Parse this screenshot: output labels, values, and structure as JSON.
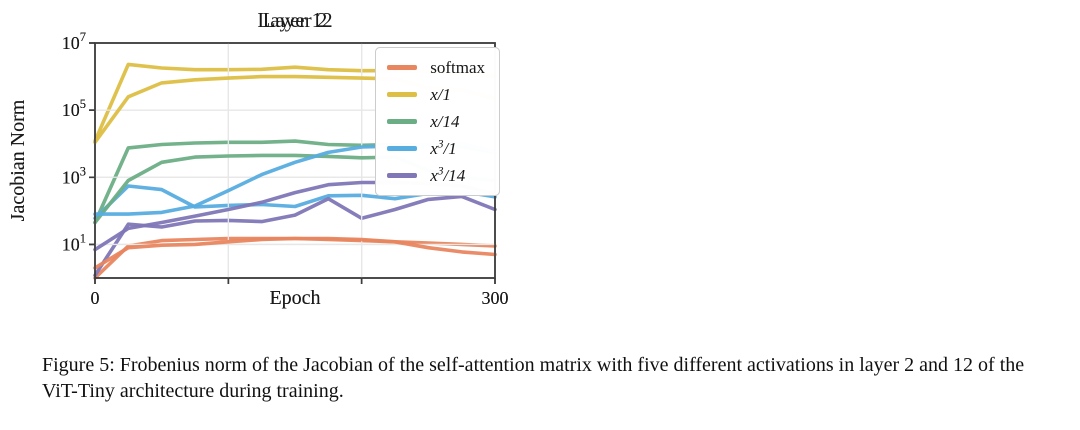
{
  "figure": {
    "caption": "Figure 5: Frobenius norm of the Jacobian of the self-attention matrix with five different activations in layer 2 and 12 of the ViT-Tiny architecture during training."
  },
  "style": {
    "grid_color": "#E7E7E7",
    "spine_color": "#3D3D3D",
    "text_color": "#1A1A1A",
    "legend_border": "#CCCCCC",
    "series_colors": {
      "softmax": "#E8865F",
      "x/1": "#DDBF45",
      "x/14": "#6BAE85",
      "x^3/1": "#57ADE0",
      "x^3/14": "#8077B7"
    }
  },
  "chart_data": [
    {
      "type": "line",
      "title": "Layer 2",
      "xlabel": "Epoch",
      "ylabel": "Jacobian Norm",
      "xlim": [
        0,
        300
      ],
      "ylim_exponents": [
        0,
        7
      ],
      "yscale": "log",
      "grid": true,
      "legend_position": "upper right",
      "xticks": [
        0,
        100,
        200,
        300
      ],
      "xtick_labels": [
        "0",
        "",
        "",
        "300"
      ],
      "ytick_exponents": [
        1,
        3,
        5,
        7
      ],
      "x": [
        0,
        25,
        50,
        75,
        100,
        125,
        150,
        175,
        200,
        225,
        250,
        275,
        300
      ],
      "series": [
        {
          "name": "softmax",
          "color": "#E8865F",
          "values": [
            1.0,
            9,
            13,
            14,
            15,
            15,
            15,
            14,
            13,
            12,
            11,
            10,
            9
          ]
        },
        {
          "name": "x/1",
          "color": "#DDBF45",
          "values": [
            12000,
            2300000,
            1800000,
            1600000,
            1600000,
            1650000,
            1900000,
            1600000,
            1500000,
            1500000,
            1400000,
            1250000,
            1000000
          ]
        },
        {
          "name": "x/14",
          "color": "#6BAE85",
          "values": [
            45,
            7500,
            9500,
            10500,
            11000,
            11000,
            12000,
            9500,
            9000,
            9500,
            9000,
            8000,
            5500
          ]
        },
        {
          "name": "x^3/1",
          "color": "#57ADE0",
          "values": [
            60,
            550,
            430,
            130,
            145,
            155,
            135,
            280,
            290,
            230,
            330,
            380,
            260
          ]
        },
        {
          "name": "x^3/14",
          "color": "#8077B7",
          "values": [
            1.2,
            40,
            33,
            50,
            52,
            48,
            75,
            230,
            60,
            110,
            220,
            270,
            110
          ]
        }
      ]
    },
    {
      "type": "line",
      "title": "Layer 12",
      "xlabel": "Epoch",
      "ylabel": "Jacobian Norm",
      "xlim": [
        0,
        300
      ],
      "ylim_exponents": [
        0,
        7
      ],
      "yscale": "log",
      "grid": true,
      "legend_position": "upper right",
      "xticks": [
        0,
        100,
        200,
        300
      ],
      "xtick_labels": [
        "0",
        "",
        "",
        "300"
      ],
      "ytick_exponents": [
        1,
        3,
        5,
        7
      ],
      "x": [
        0,
        25,
        50,
        75,
        100,
        125,
        150,
        175,
        200,
        225,
        250,
        275,
        300
      ],
      "series": [
        {
          "name": "softmax",
          "color": "#E8865F",
          "values": [
            2,
            8,
            9.5,
            10,
            12,
            14,
            15,
            15,
            14,
            12,
            8,
            6,
            5
          ]
        },
        {
          "name": "x/1",
          "color": "#DDBF45",
          "values": [
            11000,
            250000,
            650000,
            800000,
            900000,
            1000000,
            1000000,
            950000,
            900000,
            850000,
            450000,
            400000,
            220000
          ]
        },
        {
          "name": "x/14",
          "color": "#6BAE85",
          "values": [
            45,
            800,
            2800,
            4000,
            4300,
            4500,
            4500,
            4200,
            3800,
            4000,
            1600,
            1000,
            800
          ]
        },
        {
          "name": "x^3/1",
          "color": "#57ADE0",
          "values": [
            80,
            80,
            90,
            140,
            400,
            1200,
            2800,
            5500,
            8000,
            8500,
            9000,
            10000,
            5800
          ]
        },
        {
          "name": "x^3/14",
          "color": "#8077B7",
          "values": [
            7,
            30,
            45,
            70,
            110,
            180,
            350,
            600,
            700,
            700,
            650,
            550,
            320
          ]
        }
      ]
    }
  ]
}
